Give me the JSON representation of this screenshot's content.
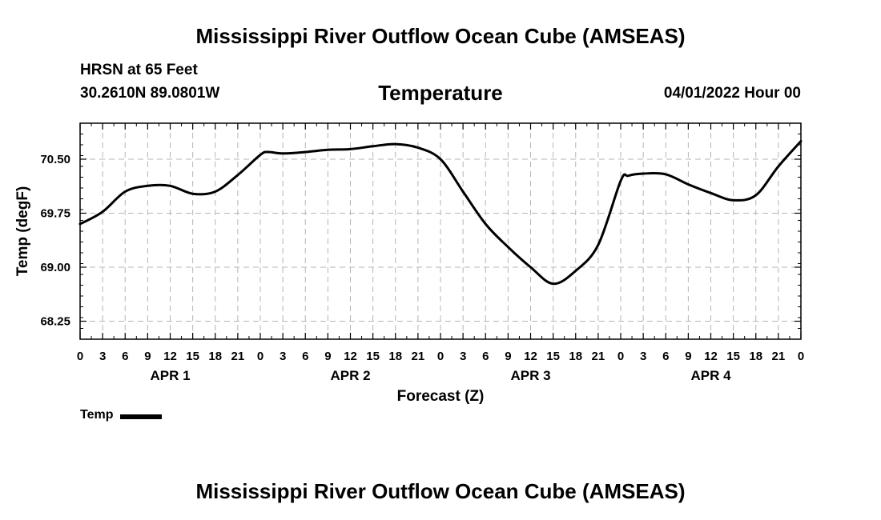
{
  "header": {
    "main_title": "Mississippi River Outflow Ocean Cube (AMSEAS)",
    "station": "HRSN at 65 Feet",
    "coords": "30.2610N  89.0801W",
    "variable": "Temperature",
    "run_time": "04/01/2022 Hour 00"
  },
  "footer": {
    "title": "Mississippi River Outflow Ocean Cube (AMSEAS)"
  },
  "legend": {
    "label": "Temp",
    "color": "#000000"
  },
  "chart_data": {
    "type": "line",
    "title": "Temperature",
    "xlabel": "Forecast (Z)",
    "ylabel": "Temp (degF)",
    "xlim": [
      0,
      96
    ],
    "ylim": [
      68.0,
      71.0
    ],
    "yticks": [
      68.25,
      69.0,
      69.75,
      70.5
    ],
    "ytick_labels": [
      "68.25",
      "69.00",
      "69.75",
      "70.50"
    ],
    "x_major_step_hours": 3,
    "xtick_labels": [
      "0",
      "3",
      "6",
      "9",
      "12",
      "15",
      "18",
      "21",
      "0",
      "3",
      "6",
      "9",
      "12",
      "15",
      "18",
      "21",
      "0",
      "3",
      "6",
      "9",
      "12",
      "15",
      "18",
      "21",
      "0",
      "3",
      "6",
      "9",
      "12",
      "15",
      "18",
      "21",
      "0"
    ],
    "day_labels": [
      "APR 1",
      "APR 2",
      "APR 3",
      "APR 4"
    ],
    "day_label_hours": [
      12,
      36,
      60,
      84
    ],
    "grid": true,
    "series": [
      {
        "name": "Temp",
        "color": "#000000",
        "x": [
          0,
          3,
          6,
          9,
          12,
          15,
          18,
          21,
          24,
          25,
          27,
          30,
          33,
          36,
          39,
          42,
          45,
          48,
          51,
          54,
          57,
          60,
          63,
          66,
          69,
          72,
          73,
          75,
          78,
          81,
          84,
          87,
          90,
          93,
          96
        ],
        "values": [
          69.6,
          69.77,
          70.05,
          70.13,
          70.13,
          70.02,
          70.05,
          70.28,
          70.56,
          70.6,
          70.58,
          70.6,
          70.63,
          70.64,
          70.68,
          70.71,
          70.66,
          70.5,
          70.05,
          69.6,
          69.28,
          69.0,
          68.77,
          68.95,
          69.31,
          70.2,
          70.27,
          70.3,
          70.29,
          70.15,
          70.03,
          69.93,
          70.0,
          70.4,
          70.75
        ]
      }
    ]
  }
}
